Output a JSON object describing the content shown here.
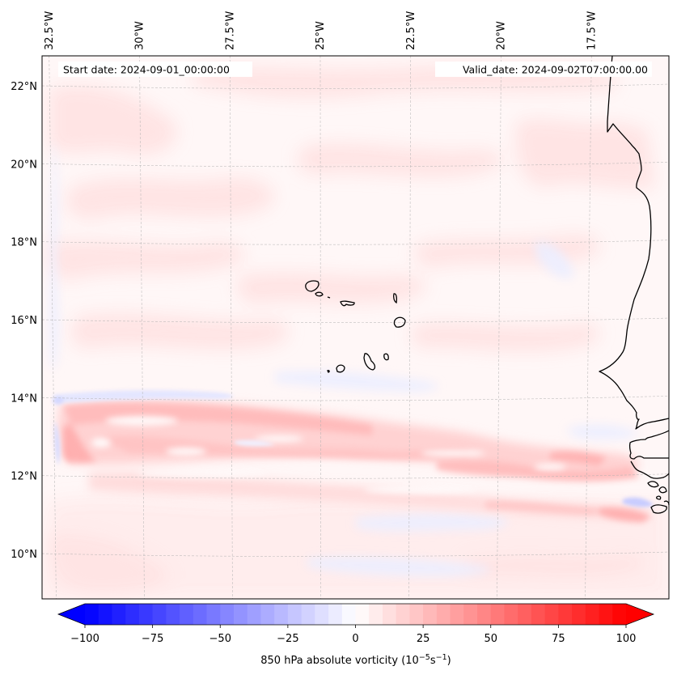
{
  "chart_data": {
    "type": "heatmap",
    "subtype": "filled-contour map",
    "projection_extent": {
      "lon": [
        -32.74,
        -15.36
      ],
      "lat": [
        8.84,
        22.77
      ]
    },
    "annotations": {
      "start_date": "Start date: 2024-09-01_00:00:00",
      "valid_date": "Valid_date: 2024-09-02T07:00:00.00"
    },
    "lon_ticks": [
      {
        "value": -32.5,
        "label": "32.5°W"
      },
      {
        "value": -30,
        "label": "30°W"
      },
      {
        "value": -27.5,
        "label": "27.5°W"
      },
      {
        "value": -25,
        "label": "25°W"
      },
      {
        "value": -22.5,
        "label": "22.5°W"
      },
      {
        "value": -20,
        "label": "20°W"
      },
      {
        "value": -17.5,
        "label": "17.5°W"
      }
    ],
    "lat_ticks": [
      {
        "value": 22,
        "label": "22°N"
      },
      {
        "value": 20,
        "label": "20°N"
      },
      {
        "value": 18,
        "label": "18°N"
      },
      {
        "value": 16,
        "label": "16°N"
      },
      {
        "value": 14,
        "label": "14°N"
      },
      {
        "value": 12,
        "label": "12°N"
      },
      {
        "value": 10,
        "label": "10°N"
      }
    ],
    "grid": true,
    "colorbar": {
      "label_main": "850 hPa absolute vorticity (10",
      "label_exp1": "−5",
      "label_mid": "s",
      "label_exp2": "−1",
      "label_end": ")",
      "vmin": -100,
      "vmax": 100,
      "step": 5,
      "extend": "both",
      "cmap": "bwr",
      "ticks": [
        {
          "value": -100,
          "label": "−100"
        },
        {
          "value": -75,
          "label": "−75"
        },
        {
          "value": -50,
          "label": "−50"
        },
        {
          "value": -25,
          "label": "−25"
        },
        {
          "value": 0,
          "label": "0"
        },
        {
          "value": 25,
          "label": "25"
        },
        {
          "value": 50,
          "label": "50"
        },
        {
          "value": 75,
          "label": "75"
        },
        {
          "value": 100,
          "label": "100"
        }
      ],
      "orientation": "horizontal",
      "placement": "bottom"
    },
    "background_value": 3,
    "features": [
      {
        "name": "ITCZ vorticity band west",
        "lon": [
          -32.4,
          -25.0
        ],
        "lat": [
          12.6,
          13.8
        ],
        "value": 25
      },
      {
        "name": "ITCZ band west core",
        "lon": [
          -32.2,
          -30.5
        ],
        "lat": [
          12.5,
          13.6
        ],
        "value": 30
      },
      {
        "name": "ITCZ band central",
        "lon": [
          -25.0,
          -20.0
        ],
        "lat": [
          12.2,
          13.2
        ],
        "value": 20
      },
      {
        "name": "ITCZ band east",
        "lon": [
          -20.0,
          -16.5
        ],
        "lat": [
          11.8,
          12.6
        ],
        "value": 25
      },
      {
        "name": "southern band",
        "lon": [
          -28.0,
          -16.5
        ],
        "lat": [
          11.0,
          11.8
        ],
        "value": 18
      },
      {
        "name": "negative strip west edge",
        "lon": [
          -32.4,
          -32.1
        ],
        "lat": [
          12.3,
          17.5
        ],
        "value": -10
      },
      {
        "name": "negative strip north of band",
        "lon": [
          -32.3,
          -26.0
        ],
        "lat": [
          13.9,
          14.3
        ],
        "value": -8
      },
      {
        "name": "negative patch near Guinea-Bissau",
        "lon": [
          -17.5,
          -16.2
        ],
        "lat": [
          11.1,
          11.4
        ],
        "value": -25
      },
      {
        "name": "positive patch coast Guinea",
        "lon": [
          -17.5,
          -16.0
        ],
        "lat": [
          10.8,
          11.1
        ],
        "value": 25
      },
      {
        "name": "northern weak positive patches",
        "lon": [
          -32.7,
          -16.0
        ],
        "lat": [
          17.0,
          22.7
        ],
        "value": 8
      },
      {
        "name": "southern weak mixed area",
        "lon": [
          -32.7,
          -15.4
        ],
        "lat": [
          8.9,
          10.8
        ],
        "value": 3
      }
    ],
    "coastline": "West Africa (Western Sahara, Mauritania, Senegal, Gambia, Guinea-Bissau) and Cape Verde islands"
  }
}
